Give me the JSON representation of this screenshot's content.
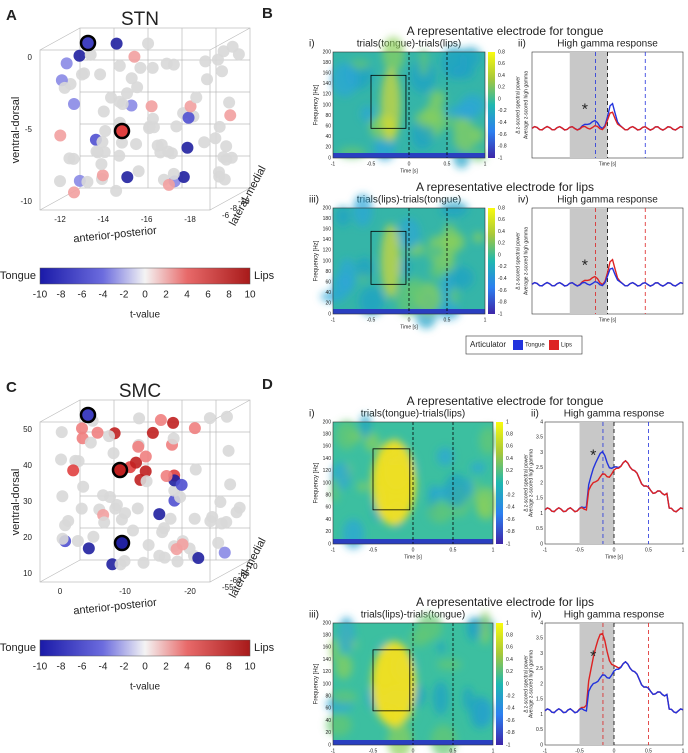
{
  "panels": {
    "A": {
      "letter": "A",
      "title": "STN",
      "z_label": "ventral-dorsal",
      "x_label": "anterior-posterior",
      "y_label": "lateral-medial",
      "z_ticks": [
        0,
        -5,
        -10
      ],
      "x_ticks": [
        -12,
        -14,
        -16,
        -18
      ],
      "y_ticks": [
        -6,
        -8,
        -10
      ],
      "colorbar": {
        "left": "Tongue",
        "right": "Lips",
        "ticks": [
          -10,
          -8,
          -6,
          -4,
          -2,
          0,
          2,
          4,
          6,
          8,
          10
        ],
        "label": "t-value"
      }
    },
    "B": {
      "letter": "B",
      "rows": [
        {
          "heading": "A representative electrode for tongue",
          "spec": {
            "roman": "i)",
            "title": "trials(tongue)-trials(lips)",
            "ylabel": "Frequency [Hz]",
            "xlabel": "Time [s]",
            "yticks": [
              0,
              20,
              40,
              60,
              80,
              100,
              120,
              140,
              160,
              180,
              200
            ],
            "xticks": [
              -1,
              -0.5,
              0,
              0.5,
              1
            ],
            "cticks": [
              0.8,
              0.6,
              0.4,
              0.2,
              0,
              -0.2,
              -0.4,
              -0.6,
              -0.8,
              -1
            ],
            "clabel": "Δ z-scored spectral power"
          },
          "line": {
            "roman": "ii)",
            "title": "High gamma response",
            "ylabel": "Average z-scored high gamma",
            "xlabel": "Time [s]",
            "star": "*"
          }
        },
        {
          "heading": "A representative electrode for lips",
          "spec": {
            "roman": "iii)",
            "title": "trials(lips)-trials(tongue)",
            "ylabel": "Frequency [Hz]",
            "xlabel": "Time [s]",
            "yticks": [
              0,
              20,
              40,
              60,
              80,
              100,
              120,
              140,
              160,
              180,
              200
            ],
            "xticks": [
              -1,
              -0.5,
              0,
              0.5,
              1
            ],
            "cticks": [
              0.8,
              0.6,
              0.4,
              0.2,
              0,
              -0.2,
              -0.4,
              -0.6,
              -0.8,
              -1
            ],
            "clabel": "Δ z-scored spectral power"
          },
          "line": {
            "roman": "iv)",
            "title": "High gamma response",
            "ylabel": "Average z-scored high gamma",
            "xlabel": "Time [s]",
            "star": "*"
          }
        }
      ],
      "legend": {
        "title": "Articulator",
        "items": [
          "Tongue",
          "Lips"
        ]
      }
    },
    "C": {
      "letter": "C",
      "title": "SMC",
      "z_label": "ventral-dorsal",
      "x_label": "anterior-posterior",
      "y_label": "lateral-medial",
      "z_ticks": [
        50,
        40,
        30,
        20,
        10
      ],
      "x_ticks": [
        0,
        -10,
        -20
      ],
      "y_ticks": [
        -55,
        -60,
        -65,
        -70
      ],
      "colorbar": {
        "left": "Tongue",
        "right": "Lips",
        "ticks": [
          -10,
          -8,
          -6,
          -4,
          -2,
          0,
          2,
          4,
          6,
          8,
          10
        ],
        "label": "t-value"
      }
    },
    "D": {
      "letter": "D",
      "rows": [
        {
          "heading": "A representative electrode for tongue",
          "spec": {
            "roman": "i)",
            "title": "trials(tongue)-trials(lips)",
            "ylabel": "Frequency [Hz]",
            "xlabel": "Time [s]",
            "yticks": [
              0,
              20,
              40,
              60,
              80,
              100,
              120,
              140,
              160,
              180,
              200
            ],
            "xticks": [
              -1,
              -0.5,
              0,
              0.5,
              1
            ],
            "cticks": [
              1,
              0.8,
              0.6,
              0.4,
              0.2,
              0,
              -0.2,
              -0.4,
              -0.6,
              -0.8,
              -1
            ],
            "clabel": "Δ z-scored spectral power"
          },
          "line": {
            "roman": "ii)",
            "title": "High gamma response",
            "ylabel": "Average z-scored high gamma",
            "xlabel": "Time [s]",
            "star": "*",
            "yticks": [
              0,
              0.5,
              1,
              1.5,
              2,
              2.5,
              3,
              3.5,
              4
            ],
            "xticks": [
              -1,
              -0.5,
              0,
              0.5,
              1
            ]
          }
        },
        {
          "heading": "A representative electrode for lips",
          "spec": {
            "roman": "iii)",
            "title": "trials(lips)-trials(tongue)",
            "ylabel": "Frequency [Hz]",
            "xlabel": "Time [s]",
            "yticks": [
              0,
              20,
              40,
              60,
              80,
              100,
              120,
              140,
              160,
              180,
              200
            ],
            "xticks": [
              -1,
              -0.5,
              0,
              0.5,
              1
            ],
            "cticks": [
              1,
              0.8,
              0.6,
              0.4,
              0.2,
              0,
              -0.2,
              -0.4,
              -0.6,
              -0.8,
              -1
            ],
            "clabel": "Δ z-scored spectral power"
          },
          "line": {
            "roman": "iv)",
            "title": "High gamma response",
            "ylabel": "Average z-scored high gamma",
            "xlabel": "Time [s]",
            "star": "*",
            "yticks": [
              0,
              0.5,
              1,
              1.5,
              2,
              2.5,
              3,
              3.5,
              4
            ],
            "xticks": [
              -1,
              -0.5,
              0,
              0.5,
              1
            ]
          }
        }
      ]
    }
  }
}
